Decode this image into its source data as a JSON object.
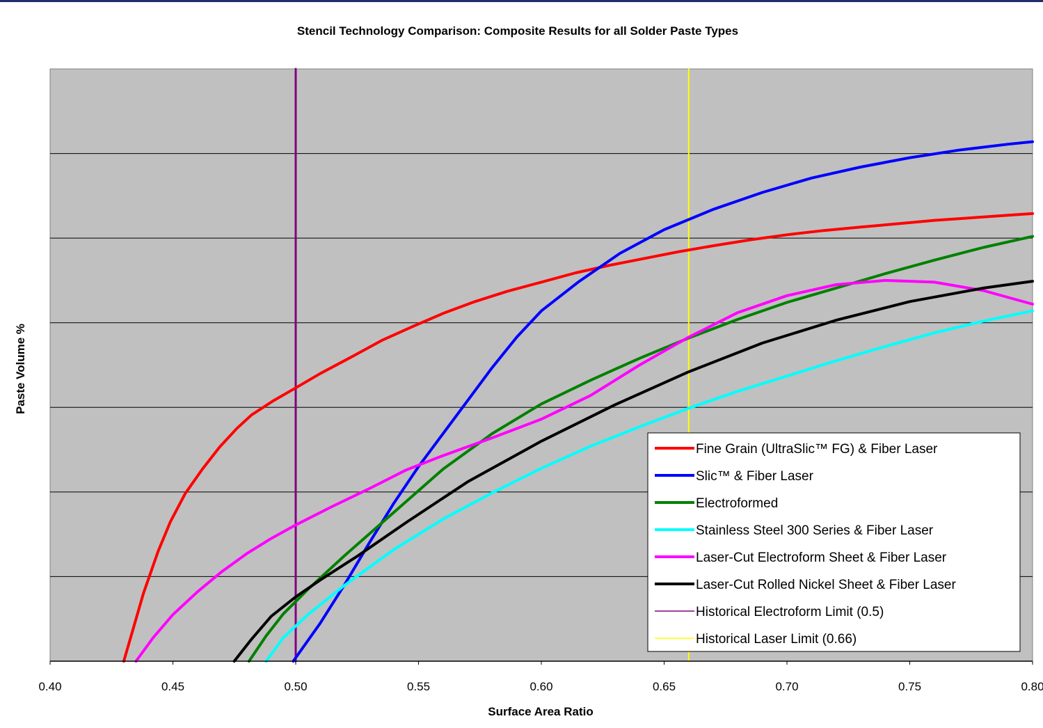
{
  "chart_data": {
    "type": "line",
    "title": "Stencil Technology Comparison:  Composite Results for all Solder Paste Types",
    "xlabel": "Surface Area Ratio",
    "ylabel": "Paste Volume %",
    "xlim": [
      0.4,
      0.8
    ],
    "ylim": [
      0,
      7
    ],
    "x_tick_labels": [
      "0.40",
      "0.45",
      "0.50",
      "0.55",
      "0.60",
      "0.65",
      "0.70",
      "0.75",
      "0.80"
    ],
    "y_tick_labels": [],
    "grid": "horizontal",
    "plot_background": "#c0c0c0",
    "legend_position": "bottom-right",
    "series": [
      {
        "name": "Fine Grain (UltraSlic™ FG) & Fiber Laser",
        "color": "#ff0000",
        "x": [
          0.43,
          0.434,
          0.438,
          0.444,
          0.449,
          0.455,
          0.462,
          0.469,
          0.476,
          0.482,
          0.491,
          0.5,
          0.51,
          0.523,
          0.535,
          0.548,
          0.56,
          0.573,
          0.586,
          0.6,
          0.614,
          0.628,
          0.642,
          0.656,
          0.67,
          0.685,
          0.7,
          0.715,
          0.73,
          0.745,
          0.76,
          0.775,
          0.79,
          0.8
        ],
        "y": [
          0.0,
          0.4,
          0.8,
          1.3,
          1.65,
          1.98,
          2.27,
          2.53,
          2.75,
          2.91,
          3.08,
          3.23,
          3.4,
          3.6,
          3.79,
          3.96,
          4.11,
          4.25,
          4.37,
          4.48,
          4.59,
          4.68,
          4.76,
          4.84,
          4.91,
          4.98,
          5.04,
          5.09,
          5.13,
          5.17,
          5.21,
          5.24,
          5.27,
          5.29
        ]
      },
      {
        "name": "Slic™ & Fiber Laser",
        "color": "#0000ff",
        "x": [
          0.499,
          0.51,
          0.52,
          0.53,
          0.54,
          0.55,
          0.56,
          0.57,
          0.58,
          0.59,
          0.6,
          0.615,
          0.632,
          0.65,
          0.67,
          0.69,
          0.71,
          0.73,
          0.75,
          0.77,
          0.79,
          0.8
        ],
        "y": [
          0.0,
          0.45,
          0.91,
          1.4,
          1.87,
          2.3,
          2.69,
          3.08,
          3.47,
          3.83,
          4.14,
          4.48,
          4.82,
          5.1,
          5.34,
          5.54,
          5.71,
          5.84,
          5.95,
          6.04,
          6.11,
          6.14
        ]
      },
      {
        "name": "Electroformed",
        "color": "#008000",
        "x": [
          0.481,
          0.488,
          0.495,
          0.505,
          0.52,
          0.54,
          0.56,
          0.58,
          0.6,
          0.62,
          0.64,
          0.66,
          0.68,
          0.7,
          0.72,
          0.74,
          0.76,
          0.78,
          0.8
        ],
        "y": [
          0.0,
          0.3,
          0.56,
          0.85,
          1.25,
          1.76,
          2.27,
          2.69,
          3.04,
          3.32,
          3.58,
          3.82,
          4.04,
          4.24,
          4.41,
          4.58,
          4.74,
          4.89,
          5.02
        ]
      },
      {
        "name": "Stainless Steel 300 Series & Fiber Laser",
        "color": "#00ffff",
        "x": [
          0.488,
          0.495,
          0.505,
          0.52,
          0.54,
          0.56,
          0.58,
          0.6,
          0.62,
          0.64,
          0.66,
          0.68,
          0.7,
          0.72,
          0.74,
          0.76,
          0.78,
          0.8
        ],
        "y": [
          0.0,
          0.28,
          0.55,
          0.9,
          1.32,
          1.68,
          1.99,
          2.28,
          2.54,
          2.77,
          2.99,
          3.19,
          3.37,
          3.55,
          3.72,
          3.88,
          4.02,
          4.14
        ]
      },
      {
        "name": "Laser-Cut Electroform Sheet & Fiber Laser",
        "color": "#ff00ff",
        "x": [
          0.435,
          0.442,
          0.45,
          0.46,
          0.47,
          0.48,
          0.49,
          0.5,
          0.515,
          0.53,
          0.545,
          0.56,
          0.58,
          0.6,
          0.62,
          0.64,
          0.66,
          0.68,
          0.7,
          0.72,
          0.74,
          0.76,
          0.78,
          0.8
        ],
        "y": [
          0.0,
          0.28,
          0.55,
          0.82,
          1.06,
          1.27,
          1.45,
          1.61,
          1.83,
          2.04,
          2.26,
          2.43,
          2.64,
          2.86,
          3.14,
          3.5,
          3.83,
          4.12,
          4.32,
          4.45,
          4.5,
          4.48,
          4.38,
          4.22
        ]
      },
      {
        "name": "Laser-Cut Rolled Nickel Sheet & Fiber Laser",
        "color": "#000000",
        "x": [
          0.475,
          0.482,
          0.49,
          0.5,
          0.51,
          0.525,
          0.545,
          0.57,
          0.6,
          0.63,
          0.66,
          0.69,
          0.72,
          0.75,
          0.78,
          0.8
        ],
        "y": [
          0.0,
          0.26,
          0.53,
          0.76,
          0.96,
          1.24,
          1.64,
          2.12,
          2.6,
          3.03,
          3.42,
          3.76,
          4.03,
          4.25,
          4.41,
          4.49
        ]
      },
      {
        "name": "Historical Electroform Limit (0.5)",
        "color": "#800080",
        "x": [
          0.5,
          0.5
        ],
        "y": [
          0,
          7
        ]
      },
      {
        "name": "Historical Laser Limit (0.66)",
        "color": "#ffff00",
        "x": [
          0.66,
          0.66
        ],
        "y": [
          0,
          7
        ]
      }
    ]
  }
}
